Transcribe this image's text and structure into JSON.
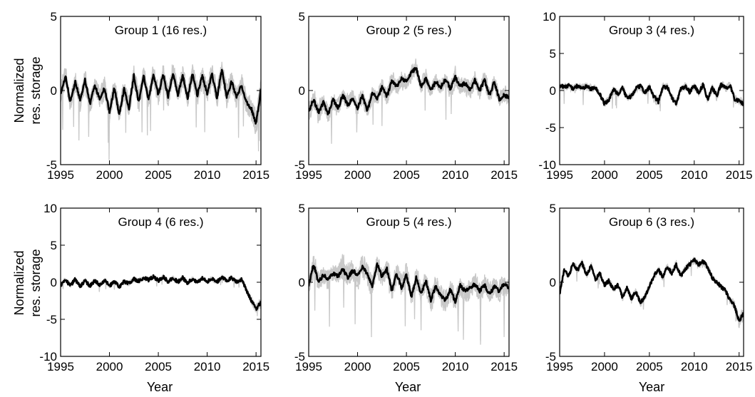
{
  "figure": {
    "ylabel": [
      "Normalized",
      "res. storage"
    ],
    "xlabel": "Year"
  },
  "chart_data": [
    {
      "type": "line",
      "title": "Group 1 (16 res.)",
      "xlim": [
        1995,
        2015.5
      ],
      "ylim": [
        -5,
        5
      ],
      "xticks": [
        1995,
        2000,
        2005,
        2010,
        2015
      ],
      "yticks": [
        -5,
        0,
        5
      ],
      "series": [
        {
          "role": "mean",
          "color": "#000000",
          "x": [
            1995,
            1995.5,
            1996,
            1996.5,
            1997,
            1997.5,
            1998,
            1998.5,
            1999,
            1999.5,
            2000,
            2000.5,
            2001,
            2001.5,
            2002,
            2002.5,
            2003,
            2003.5,
            2004,
            2004.5,
            2005,
            2005.5,
            2006,
            2006.5,
            2007,
            2007.5,
            2008,
            2008.5,
            2009,
            2009.5,
            2010,
            2010.5,
            2011,
            2011.5,
            2012,
            2012.5,
            2013,
            2013.5,
            2014,
            2014.5,
            2015,
            2015.5
          ],
          "y": [
            -0.3,
            1.0,
            -0.8,
            0.6,
            -0.7,
            0.7,
            -0.9,
            0.4,
            -0.6,
            0.2,
            -1.5,
            0.2,
            -1.6,
            0.1,
            -1.2,
            1.0,
            -0.8,
            1.0,
            -0.6,
            1.1,
            -0.3,
            1.1,
            -0.4,
            1.2,
            -0.3,
            1.0,
            -0.5,
            1.1,
            -0.3,
            1.0,
            -0.2,
            1.1,
            -0.5,
            1.4,
            -0.4,
            0.6,
            -0.5,
            0.4,
            -0.8,
            -1.2,
            -2.2,
            0.0
          ]
        },
        {
          "role": "members",
          "color": "#c8c8c8",
          "count": 16,
          "spread": 1.1
        }
      ]
    },
    {
      "type": "line",
      "title": "Group 2 (5 res.)",
      "xlim": [
        1995,
        2015.5
      ],
      "ylim": [
        -5,
        5
      ],
      "xticks": [
        1995,
        2000,
        2005,
        2010,
        2015
      ],
      "yticks": [
        -5,
        0,
        5
      ],
      "series": [
        {
          "role": "mean",
          "color": "#000000",
          "x": [
            1995,
            1995.5,
            1996,
            1996.5,
            1997,
            1997.5,
            1998,
            1998.5,
            1999,
            1999.5,
            2000,
            2000.5,
            2001,
            2001.5,
            2002,
            2002.5,
            2003,
            2003.5,
            2004,
            2004.5,
            2005,
            2005.5,
            2006,
            2006.5,
            2007,
            2007.5,
            2008,
            2008.5,
            2009,
            2009.5,
            2010,
            2010.5,
            2011,
            2011.5,
            2012,
            2012.5,
            2013,
            2013.5,
            2014,
            2014.5,
            2015,
            2015.5
          ],
          "y": [
            -1.4,
            -0.6,
            -1.5,
            -0.8,
            -1.6,
            -0.6,
            -1.2,
            -0.3,
            -1.0,
            -0.5,
            -1.2,
            -0.3,
            -1.4,
            -0.2,
            -0.5,
            0.2,
            -0.4,
            0.6,
            0.3,
            0.8,
            0.6,
            1.2,
            1.5,
            0.3,
            0.8,
            0.0,
            0.6,
            0.2,
            0.8,
            0.1,
            0.9,
            0.3,
            0.5,
            0.0,
            0.7,
            0.0,
            0.7,
            -0.3,
            0.6,
            -0.6,
            -0.3,
            -0.5
          ]
        },
        {
          "role": "members",
          "color": "#c8c8c8",
          "count": 5,
          "spread": 0.9
        }
      ]
    },
    {
      "type": "line",
      "title": "Group 3 (4 res.)",
      "xlim": [
        1995,
        2015.5
      ],
      "ylim": [
        -10,
        10
      ],
      "xticks": [
        1995,
        2000,
        2005,
        2010,
        2015
      ],
      "yticks": [
        -10,
        -5,
        0,
        5,
        10
      ],
      "series": [
        {
          "role": "mean",
          "color": "#000000",
          "x": [
            1995,
            1995.5,
            1996,
            1996.5,
            1997,
            1997.5,
            1998,
            1998.5,
            1999,
            1999.5,
            2000,
            2000.5,
            2001,
            2001.5,
            2002,
            2002.5,
            2003,
            2003.5,
            2004,
            2004.5,
            2005,
            2005.5,
            2006,
            2006.5,
            2007,
            2007.5,
            2008,
            2008.5,
            2009,
            2009.5,
            2010,
            2010.5,
            2011,
            2011.5,
            2012,
            2012.5,
            2013,
            2013.5,
            2014,
            2014.5,
            2015,
            2015.5
          ],
          "y": [
            0.6,
            0.5,
            0.7,
            0.3,
            0.6,
            0.4,
            0.5,
            0.2,
            0.3,
            -0.5,
            -1.8,
            -1.2,
            0.1,
            -0.5,
            0.3,
            -1.0,
            -0.8,
            0.3,
            0.6,
            -0.3,
            0.5,
            -0.8,
            -1.5,
            0.4,
            0.5,
            -1.0,
            -1.8,
            0.2,
            0.6,
            -0.2,
            0.6,
            -0.3,
            0.8,
            -1.2,
            0.4,
            -0.7,
            0.8,
            0.3,
            0.7,
            -1.2,
            -1.4,
            -1.8
          ]
        },
        {
          "role": "members",
          "color": "#c8c8c8",
          "count": 4,
          "spread": 0.8
        }
      ]
    },
    {
      "type": "line",
      "title": "Group 4 (6 res.)",
      "xlim": [
        1995,
        2015.5
      ],
      "ylim": [
        -10,
        10
      ],
      "xticks": [
        1995,
        2000,
        2005,
        2010,
        2015
      ],
      "yticks": [
        -10,
        -5,
        0,
        5,
        10
      ],
      "series": [
        {
          "role": "mean",
          "color": "#000000",
          "x": [
            1995,
            1995.5,
            1996,
            1996.5,
            1997,
            1997.5,
            1998,
            1998.5,
            1999,
            1999.5,
            2000,
            2000.5,
            2001,
            2001.5,
            2002,
            2002.5,
            2003,
            2003.5,
            2004,
            2004.5,
            2005,
            2005.5,
            2006,
            2006.5,
            2007,
            2007.5,
            2008,
            2008.5,
            2009,
            2009.5,
            2010,
            2010.5,
            2011,
            2011.5,
            2012,
            2012.5,
            2013,
            2013.5,
            2014,
            2014.5,
            2015,
            2015.5
          ],
          "y": [
            -0.4,
            0.3,
            -0.5,
            0.4,
            -0.6,
            0.3,
            -0.5,
            0.2,
            -0.4,
            0.3,
            -0.5,
            0.1,
            -0.6,
            0.1,
            -0.2,
            0.4,
            0.2,
            0.6,
            0.3,
            0.8,
            0.2,
            0.7,
            0.1,
            0.6,
            0.0,
            0.6,
            -0.1,
            0.5,
            0.0,
            0.6,
            0.1,
            0.5,
            0.0,
            0.7,
            0.1,
            0.6,
            0.0,
            0.4,
            -1.0,
            -2.5,
            -3.6,
            -2.8
          ]
        },
        {
          "role": "members",
          "color": "#c8c8c8",
          "count": 6,
          "spread": 0.4
        }
      ]
    },
    {
      "type": "line",
      "title": "Group 5 (4 res.)",
      "xlim": [
        1995,
        2015.5
      ],
      "ylim": [
        -5,
        5
      ],
      "xticks": [
        1995,
        2000,
        2005,
        2010,
        2015
      ],
      "yticks": [
        -5,
        0,
        5
      ],
      "series": [
        {
          "role": "mean",
          "color": "#000000",
          "x": [
            1995,
            1995.5,
            1996,
            1996.5,
            1997,
            1997.5,
            1998,
            1998.5,
            1999,
            1999.5,
            2000,
            2000.5,
            2001,
            2001.5,
            2002,
            2002.5,
            2003,
            2003.5,
            2004,
            2004.5,
            2005,
            2005.5,
            2006,
            2006.5,
            2007,
            2007.5,
            2008,
            2008.5,
            2009,
            2009.5,
            2010,
            2010.5,
            2011,
            2011.5,
            2012,
            2012.5,
            2013,
            2013.5,
            2014,
            2014.5,
            2015,
            2015.5
          ],
          "y": [
            -0.2,
            1.2,
            0.0,
            0.5,
            0.2,
            0.6,
            0.4,
            0.9,
            0.3,
            0.8,
            0.5,
            1.0,
            0.6,
            -0.3,
            1.2,
            0.4,
            0.9,
            -0.6,
            0.6,
            -0.4,
            0.5,
            -1.0,
            0.3,
            -0.8,
            0.1,
            -1.2,
            -0.3,
            -0.9,
            -1.2,
            -0.5,
            -1.3,
            -0.2,
            -0.6,
            -0.4,
            -0.1,
            -0.6,
            -0.2,
            -0.8,
            -0.3,
            -0.6,
            -0.1,
            -0.4
          ]
        },
        {
          "role": "members",
          "color": "#c8c8c8",
          "count": 4,
          "spread": 1.2
        }
      ]
    },
    {
      "type": "line",
      "title": "Group 6 (3 res.)",
      "xlim": [
        1995,
        2015.5
      ],
      "ylim": [
        -5,
        5
      ],
      "xticks": [
        1995,
        2000,
        2005,
        2010,
        2015
      ],
      "yticks": [
        -5,
        0,
        5
      ],
      "series": [
        {
          "role": "mean",
          "color": "#000000",
          "x": [
            1995,
            1995.5,
            1996,
            1996.5,
            1997,
            1997.5,
            1998,
            1998.5,
            1999,
            1999.5,
            2000,
            2000.5,
            2001,
            2001.5,
            2002,
            2002.5,
            2003,
            2003.5,
            2004,
            2004.5,
            2005,
            2005.5,
            2006,
            2006.5,
            2007,
            2007.5,
            2008,
            2008.5,
            2009,
            2009.5,
            2010,
            2010.5,
            2011,
            2011.5,
            2012,
            2012.5,
            2013,
            2013.5,
            2014,
            2014.5,
            2015,
            2015.5
          ],
          "y": [
            -0.8,
            0.8,
            0.4,
            1.3,
            0.8,
            1.3,
            0.5,
            1.1,
            0.2,
            0.6,
            -0.2,
            0.1,
            -0.5,
            -0.2,
            -1.0,
            -0.4,
            -1.1,
            -0.6,
            -1.4,
            -1.0,
            -0.3,
            0.4,
            0.9,
            0.3,
            1.1,
            0.6,
            1.2,
            0.4,
            0.9,
            1.2,
            1.5,
            1.2,
            1.4,
            1.0,
            0.3,
            0.0,
            -0.3,
            -0.6,
            -1.2,
            -1.6,
            -2.6,
            -2.1
          ]
        },
        {
          "role": "members",
          "color": "#c8c8c8",
          "count": 3,
          "spread": 0.3
        }
      ]
    }
  ]
}
